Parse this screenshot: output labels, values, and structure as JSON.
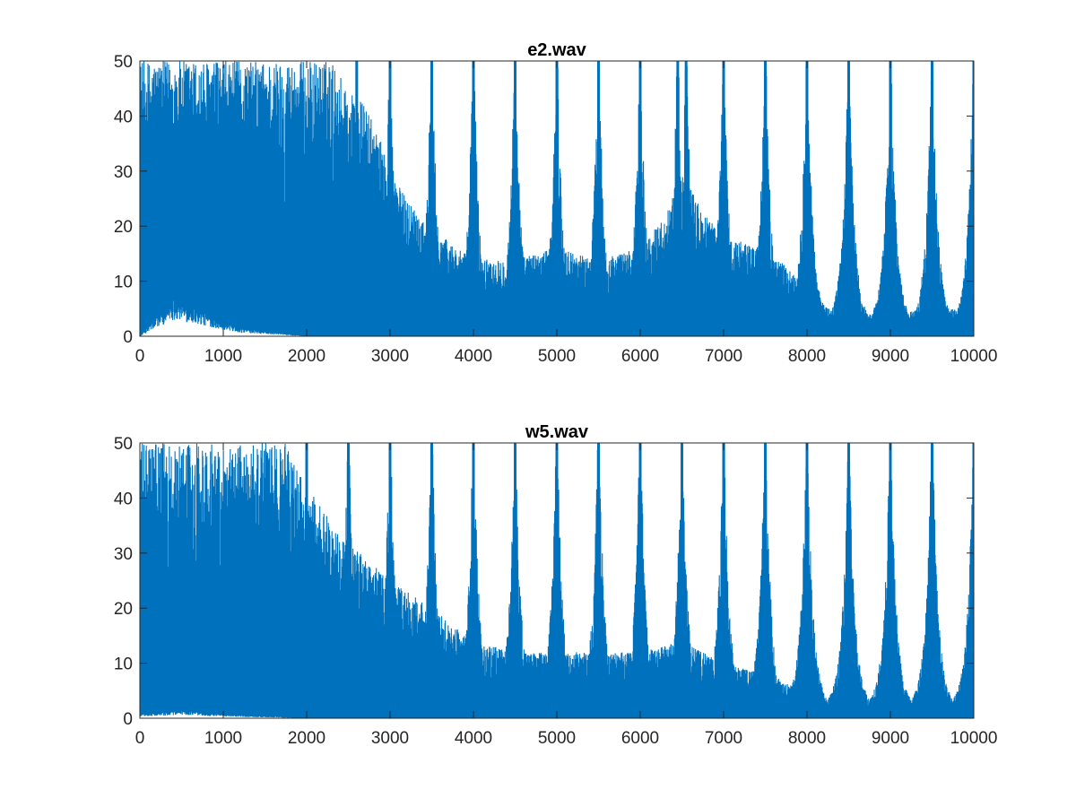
{
  "figure": {
    "background_color": "#ffffff",
    "axes_color": "#262626",
    "line_color": "#0072BD"
  },
  "chart_data": [
    {
      "type": "line",
      "title": "e2.wav",
      "xlabel": "",
      "ylabel": "",
      "xlim": [
        0,
        10000
      ],
      "ylim": [
        0,
        50
      ],
      "xticks": [
        0,
        1000,
        2000,
        3000,
        4000,
        5000,
        6000,
        7000,
        8000,
        9000,
        10000
      ],
      "yticks": [
        0,
        10,
        20,
        30,
        40,
        50
      ],
      "grid": false,
      "series": [
        {
          "color": "#0072BD",
          "description": "dense spectrum, noise envelope (approx)",
          "envelope": [
            [
              0,
              50
            ],
            [
              500,
              50
            ],
            [
              1000,
              50
            ],
            [
              1500,
              50
            ],
            [
              2000,
              50
            ],
            [
              2300,
              50
            ],
            [
              2500,
              45
            ],
            [
              2700,
              42
            ],
            [
              2900,
              35
            ],
            [
              3000,
              30
            ],
            [
              3200,
              25
            ],
            [
              3500,
              20
            ],
            [
              3800,
              16
            ],
            [
              4000,
              14
            ],
            [
              4500,
              14
            ],
            [
              5000,
              16
            ],
            [
              5500,
              14
            ],
            [
              6000,
              16
            ],
            [
              6300,
              22
            ],
            [
              6500,
              30
            ],
            [
              6700,
              24
            ],
            [
              7000,
              18
            ],
            [
              7500,
              16
            ],
            [
              7800,
              12
            ],
            [
              8000,
              8
            ],
            [
              8300,
              5
            ],
            [
              8600,
              4
            ],
            [
              9000,
              4
            ],
            [
              9500,
              5
            ],
            [
              10000,
              5
            ]
          ],
          "floor": [
            [
              0,
              0
            ],
            [
              400,
              5
            ],
            [
              800,
              3
            ],
            [
              1200,
              1
            ],
            [
              1600,
              0.5
            ],
            [
              2000,
              0
            ],
            [
              10000,
              0
            ]
          ],
          "peaks": [
            [
              2600,
              50
            ],
            [
              3000,
              50
            ],
            [
              3500,
              50
            ],
            [
              4000,
              50
            ],
            [
              4500,
              50
            ],
            [
              5000,
              50
            ],
            [
              5500,
              50
            ],
            [
              6000,
              50
            ],
            [
              6450,
              50
            ],
            [
              6550,
              50
            ],
            [
              7000,
              50
            ],
            [
              7500,
              50
            ],
            [
              8000,
              50
            ],
            [
              8500,
              50
            ],
            [
              9000,
              50
            ],
            [
              9500,
              50
            ],
            [
              10000,
              50
            ]
          ]
        }
      ]
    },
    {
      "type": "line",
      "title": "w5.wav",
      "xlabel": "",
      "ylabel": "",
      "xlim": [
        0,
        10000
      ],
      "ylim": [
        0,
        50
      ],
      "xticks": [
        0,
        1000,
        2000,
        3000,
        4000,
        5000,
        6000,
        7000,
        8000,
        9000,
        10000
      ],
      "yticks": [
        0,
        10,
        20,
        30,
        40,
        50
      ],
      "grid": false,
      "series": [
        {
          "color": "#0072BD",
          "description": "dense spectrum, noise envelope (approx)",
          "envelope": [
            [
              0,
              50
            ],
            [
              500,
              50
            ],
            [
              1000,
              50
            ],
            [
              1500,
              50
            ],
            [
              1750,
              50
            ],
            [
              1900,
              45
            ],
            [
              2000,
              42
            ],
            [
              2200,
              38
            ],
            [
              2500,
              32
            ],
            [
              3000,
              25
            ],
            [
              3500,
              20
            ],
            [
              4000,
              14
            ],
            [
              4500,
              12
            ],
            [
              5000,
              12
            ],
            [
              5500,
              12
            ],
            [
              6000,
              12
            ],
            [
              6500,
              14
            ],
            [
              7000,
              10
            ],
            [
              7500,
              8
            ],
            [
              7800,
              6
            ],
            [
              8000,
              5
            ],
            [
              8300,
              3
            ],
            [
              8600,
              2
            ],
            [
              9000,
              2
            ],
            [
              9500,
              2
            ],
            [
              10000,
              3
            ]
          ],
          "floor": [
            [
              0,
              0.5
            ],
            [
              500,
              1
            ],
            [
              1000,
              0.5
            ],
            [
              2000,
              0
            ],
            [
              10000,
              0
            ]
          ],
          "peaks": [
            [
              2000,
              50
            ],
            [
              2500,
              50
            ],
            [
              3000,
              50
            ],
            [
              3500,
              50
            ],
            [
              4000,
              50
            ],
            [
              4500,
              50
            ],
            [
              5000,
              50
            ],
            [
              5500,
              50
            ],
            [
              6000,
              50
            ],
            [
              6500,
              50
            ],
            [
              7000,
              50
            ],
            [
              7500,
              50
            ],
            [
              8000,
              50
            ],
            [
              8500,
              50
            ],
            [
              9000,
              50
            ],
            [
              9500,
              50
            ],
            [
              10000,
              50
            ]
          ]
        }
      ]
    }
  ]
}
